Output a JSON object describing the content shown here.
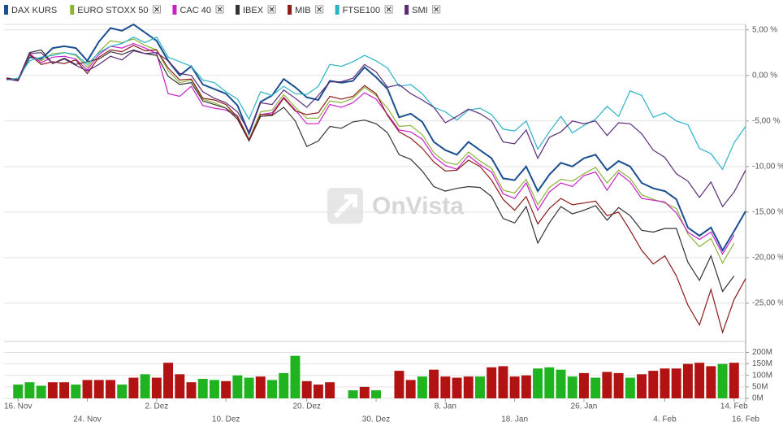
{
  "chart_data": [
    {
      "type": "line",
      "watermark": "OnVista",
      "legend": "top",
      "grid": true,
      "categories": [
        null,
        "16. Nov",
        null,
        null,
        null,
        null,
        null,
        "24. Nov",
        null,
        null,
        null,
        null,
        null,
        "2. Dez",
        null,
        null,
        null,
        null,
        null,
        "10. Dez",
        null,
        null,
        null,
        null,
        null,
        null,
        "20. Dez",
        null,
        null,
        null,
        null,
        null,
        "30. Dez",
        null,
        null,
        null,
        null,
        null,
        "8. Jan",
        null,
        null,
        null,
        null,
        null,
        "18. Jan",
        null,
        null,
        null,
        null,
        null,
        "26. Jan",
        null,
        null,
        null,
        null,
        null,
        null,
        "4. Feb",
        null,
        null,
        null,
        null,
        null,
        "14. Feb",
        "16. Feb"
      ],
      "ylim": [
        -29.2,
        5.6
      ],
      "yticks": [
        {
          "value": 5,
          "label": "5,00 %"
        },
        {
          "value": 0,
          "label": "0,00 %"
        },
        {
          "value": -5,
          "label": "-5,00 %"
        },
        {
          "value": -10,
          "label": "-10,00 %"
        },
        {
          "value": -15,
          "label": "-15,00 %"
        },
        {
          "value": -20,
          "label": "-20,00 %"
        },
        {
          "value": -25,
          "label": "-25,00 %"
        }
      ],
      "series": [
        {
          "name": "DAX KURS",
          "color": "#1a4f8f",
          "values": [
            -0.3,
            -0.5,
            2.0,
            1.8,
            3.0,
            3.2,
            3.0,
            1.6,
            3.7,
            5.2,
            4.9,
            5.6,
            4.7,
            3.8,
            1.6,
            0.0,
            1.0,
            -1.0,
            -1.5,
            -2.0,
            -3.3,
            -6.4,
            -2.9,
            -2.2,
            -0.4,
            -1.3,
            -2.4,
            -2.7,
            -0.6,
            -0.8,
            -0.6,
            0.9,
            -0.2,
            -1.5,
            -4.6,
            -4.2,
            -5.1,
            -7.3,
            -8.2,
            -8.7,
            -7.3,
            -8.2,
            -9.1,
            -11.3,
            -11.5,
            -10.0,
            -12.7,
            -10.9,
            -9.6,
            -10.0,
            -9.1,
            -8.7,
            -10.4,
            -9.4,
            -10.0,
            -11.8,
            -12.4,
            -12.7,
            -13.6,
            -16.7,
            -17.6,
            -16.7,
            -19.2,
            -17.1,
            -14.9
          ]
        },
        {
          "name": "EURO STOXX 50",
          "color": "#8db33a",
          "values": [
            -0.3,
            -0.5,
            2.2,
            1.6,
            2.4,
            2.5,
            2.2,
            0.9,
            2.6,
            3.8,
            3.6,
            4.0,
            3.3,
            2.8,
            0.5,
            -0.8,
            -0.5,
            -2.6,
            -3.0,
            -3.6,
            -4.4,
            -7.0,
            -4.0,
            -3.8,
            -2.1,
            -3.5,
            -4.7,
            -4.7,
            -2.8,
            -3.0,
            -2.5,
            -1.3,
            -2.2,
            -3.6,
            -5.6,
            -5.5,
            -6.5,
            -8.5,
            -9.5,
            -9.8,
            -8.4,
            -9.4,
            -10.2,
            -12.6,
            -12.9,
            -11.4,
            -14.2,
            -12.3,
            -11.4,
            -11.6,
            -10.8,
            -10.1,
            -11.8,
            -10.4,
            -11.3,
            -13.1,
            -13.6,
            -14.0,
            -14.6,
            -17.4,
            -18.8,
            -17.9,
            -20.6,
            -18.4,
            null
          ]
        },
        {
          "name": "CAC 40",
          "color": "#c81fc8",
          "values": [
            -0.4,
            -0.5,
            2.4,
            1.4,
            2.0,
            2.1,
            1.8,
            0.6,
            2.3,
            3.2,
            3.0,
            3.5,
            3.0,
            2.4,
            -2.0,
            -2.3,
            -1.2,
            -3.3,
            -3.6,
            -3.8,
            -4.5,
            -7.1,
            -4.3,
            -4.1,
            -2.4,
            -3.8,
            -5.3,
            -5.3,
            -3.2,
            -3.5,
            -3.0,
            -1.9,
            -2.6,
            -4.3,
            -6.0,
            -6.2,
            -7.0,
            -8.9,
            -9.9,
            -10.3,
            -8.8,
            -9.8,
            -10.6,
            -13.0,
            -13.5,
            -11.8,
            -14.8,
            -12.8,
            -11.8,
            -12.2,
            -11.0,
            -10.6,
            -12.6,
            -10.7,
            -11.7,
            -13.5,
            -13.7,
            -13.9,
            -15.1,
            -17.2,
            -18.0,
            -17.2,
            -19.6,
            -17.5,
            null
          ]
        },
        {
          "name": "IBEX",
          "color": "#333333",
          "values": [
            -0.3,
            -0.5,
            2.5,
            2.8,
            1.3,
            1.9,
            1.2,
            1.5,
            1.8,
            2.6,
            2.3,
            2.8,
            2.4,
            2.2,
            -0.1,
            -1.0,
            -0.8,
            -2.8,
            -3.2,
            -3.6,
            -4.8,
            -7.2,
            -4.5,
            -4.4,
            -3.5,
            -5.0,
            -7.8,
            -7.2,
            -5.6,
            -5.8,
            -5.1,
            -4.9,
            -5.3,
            -6.3,
            -8.7,
            -9.2,
            -10.5,
            -12.2,
            -12.7,
            -12.4,
            -12.2,
            -12.3,
            -13.3,
            -15.7,
            -16.2,
            -14.4,
            -18.4,
            -16.2,
            -14.4,
            -15.2,
            -14.8,
            -14.3,
            -15.9,
            -14.5,
            -15.4,
            -17.0,
            -17.2,
            -16.8,
            -16.8,
            -20.5,
            -22.5,
            -19.8,
            -23.7,
            -22.0,
            null
          ]
        },
        {
          "name": "MIB",
          "color": "#8b1a1a",
          "values": [
            -0.3,
            -0.5,
            2.3,
            1.2,
            1.5,
            1.3,
            1.7,
            0.2,
            2.0,
            2.8,
            2.6,
            3.3,
            2.7,
            2.8,
            0.8,
            -0.5,
            -0.4,
            -2.5,
            -2.7,
            -3.2,
            -4.6,
            -7.1,
            -4.3,
            -4.3,
            -2.5,
            -3.9,
            -4.3,
            -4.1,
            -2.3,
            -2.6,
            -2.3,
            -1.1,
            -2.0,
            -4.4,
            -6.2,
            -6.9,
            -8.0,
            -9.5,
            -10.5,
            -10.4,
            -9.3,
            -10.0,
            -11.5,
            -13.6,
            -14.8,
            -13.3,
            -16.3,
            -14.6,
            -13.5,
            -14.2,
            -14.0,
            -13.8,
            -15.4,
            -15.0,
            -17.0,
            -19.2,
            -20.7,
            -19.8,
            -22.0,
            -25.2,
            -27.4,
            -23.5,
            -28.2,
            -24.6,
            -22.3
          ]
        },
        {
          "name": "FTSE100",
          "color": "#2bb3c9",
          "values": [
            -0.5,
            -0.3,
            1.6,
            2.0,
            2.2,
            2.5,
            2.3,
            1.2,
            2.5,
            3.2,
            3.5,
            4.2,
            3.6,
            4.2,
            2.0,
            1.5,
            1.0,
            -0.5,
            -0.8,
            -1.8,
            -2.6,
            -4.8,
            -1.8,
            -2.2,
            -1.2,
            -2.0,
            -2.1,
            -1.2,
            1.2,
            1.0,
            1.5,
            2.2,
            1.6,
            0.8,
            -1.2,
            -1.0,
            -2.0,
            -3.5,
            -4.0,
            -4.9,
            -3.8,
            -3.6,
            -4.3,
            -5.9,
            -6.1,
            -5.0,
            -8.1,
            -6.2,
            -4.5,
            -6.3,
            -5.5,
            -4.8,
            -3.4,
            -4.5,
            -1.7,
            -2.2,
            -4.6,
            -4.1,
            -5.0,
            -5.4,
            -8.0,
            -8.6,
            -10.3,
            -7.4,
            -5.6
          ]
        },
        {
          "name": "SMI",
          "color": "#5b2b7a",
          "values": [
            -0.4,
            -0.6,
            2.4,
            2.5,
            1.3,
            1.8,
            1.1,
            0.5,
            1.2,
            2.1,
            1.7,
            2.7,
            2.4,
            2.5,
            1.6,
            0.2,
            0.0,
            -1.8,
            -2.5,
            -3.0,
            -4.0,
            -6.2,
            -3.0,
            -3.2,
            -1.6,
            -2.5,
            -3.5,
            -2.2,
            -0.7,
            -0.7,
            -0.3,
            1.2,
            0.4,
            -1.3,
            -1.0,
            -2.0,
            -2.7,
            -3.5,
            -5.2,
            -4.5,
            -3.7,
            -4.2,
            -5.0,
            -7.3,
            -7.5,
            -6.0,
            -9.1,
            -6.8,
            -6.2,
            -5.0,
            -5.3,
            -5.0,
            -6.6,
            -5.2,
            -5.3,
            -6.4,
            -8.2,
            -9.0,
            -10.8,
            -11.6,
            -13.4,
            -11.7,
            -14.4,
            -12.8,
            -10.4
          ]
        }
      ]
    },
    {
      "type": "bar",
      "ylim": [
        0,
        230
      ],
      "yticks": [
        {
          "value": 0,
          "label": "0M"
        },
        {
          "value": 50,
          "label": "50M"
        },
        {
          "value": 100,
          "label": "100M"
        },
        {
          "value": 150,
          "label": "150M"
        },
        {
          "value": 200,
          "label": "200M"
        }
      ],
      "values": [
        null,
        60,
        70,
        55,
        70,
        70,
        60,
        80,
        80,
        80,
        60,
        90,
        105,
        90,
        155,
        105,
        70,
        85,
        80,
        75,
        100,
        90,
        95,
        80,
        110,
        185,
        75,
        60,
        70,
        null,
        35,
        50,
        35,
        null,
        120,
        80,
        95,
        125,
        95,
        90,
        95,
        95,
        135,
        140,
        95,
        100,
        130,
        135,
        125,
        95,
        110,
        90,
        115,
        110,
        90,
        105,
        120,
        130,
        130,
        150,
        155,
        140,
        150,
        155,
        null
      ],
      "colors": [
        null,
        "#1fb31f",
        "#1fb31f",
        "#1fb31f",
        "#b31212",
        "#b31212",
        "#1fb31f",
        "#b31212",
        "#b31212",
        "#b31212",
        "#1fb31f",
        "#b31212",
        "#1fb31f",
        "#b31212",
        "#b31212",
        "#b31212",
        "#b31212",
        "#1fb31f",
        "#1fb31f",
        "#b31212",
        "#1fb31f",
        "#1fb31f",
        "#b31212",
        "#1fb31f",
        "#1fb31f",
        "#1fb31f",
        "#b31212",
        "#b31212",
        "#b31212",
        null,
        "#1fb31f",
        "#b31212",
        "#1fb31f",
        null,
        "#b31212",
        "#b31212",
        "#1fb31f",
        "#b31212",
        "#b31212",
        "#b31212",
        "#b31212",
        "#1fb31f",
        "#b31212",
        "#b31212",
        "#b31212",
        "#b31212",
        "#1fb31f",
        "#1fb31f",
        "#1fb31f",
        "#1fb31f",
        "#b31212",
        "#1fb31f",
        "#b31212",
        "#b31212",
        "#1fb31f",
        "#b31212",
        "#b31212",
        "#b31212",
        "#b31212",
        "#b31212",
        "#b31212",
        "#b31212",
        "#1fb31f",
        "#b31212",
        null
      ]
    }
  ]
}
